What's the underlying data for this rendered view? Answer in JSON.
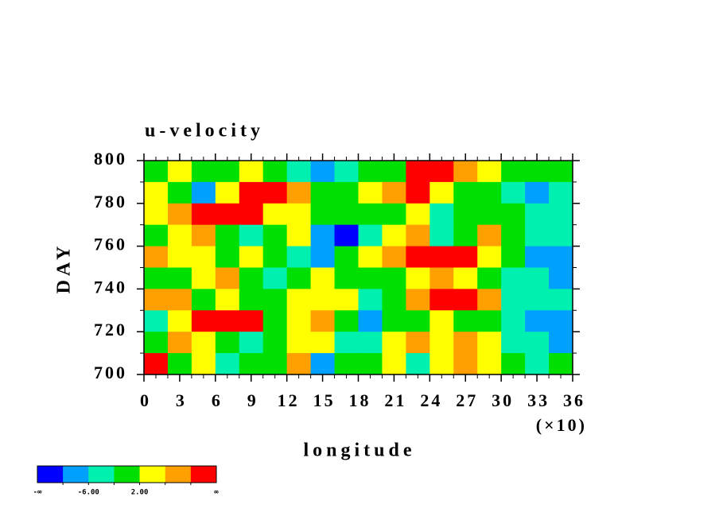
{
  "chart_data": {
    "type": "heatmap",
    "title": "u-velocity",
    "xlabel": "longitude",
    "ylabel": "DAY",
    "x_scale_note": "(×10)",
    "x": [
      1,
      3,
      5,
      7,
      9,
      11,
      13,
      15,
      17,
      19,
      21,
      23,
      25,
      27,
      29,
      31,
      33,
      35
    ],
    "y": [
      795,
      785,
      775,
      765,
      755,
      745,
      735,
      725,
      715,
      705
    ],
    "z": [
      [
        0,
        2,
        -2,
        0,
        4,
        -2,
        -4,
        -8,
        -4,
        -2,
        0,
        12,
        12,
        8,
        4,
        -2,
        -2,
        0
      ],
      [
        2,
        -2,
        -8,
        4,
        10,
        12,
        6,
        0,
        -2,
        4,
        6,
        10,
        4,
        0,
        -2,
        -4,
        -8,
        -4
      ],
      [
        4,
        8,
        12,
        12,
        10,
        4,
        2,
        -2,
        0,
        -2,
        0,
        2,
        -6,
        0,
        -2,
        -2,
        -4,
        -4
      ],
      [
        0,
        4,
        6,
        -2,
        -6,
        0,
        2,
        -8,
        -12,
        -4,
        2,
        6,
        -4,
        0,
        6,
        -2,
        -4,
        -6
      ],
      [
        6,
        4,
        2,
        0,
        4,
        -2,
        -4,
        -8,
        -2,
        2,
        6,
        10,
        12,
        12,
        4,
        -2,
        -10,
        -8
      ],
      [
        -2,
        0,
        4,
        6,
        -2,
        -6,
        0,
        2,
        0,
        -2,
        0,
        4,
        6,
        2,
        -2,
        -4,
        -6,
        -8
      ],
      [
        8,
        6,
        -2,
        2,
        0,
        -2,
        4,
        2,
        2,
        -4,
        0,
        8,
        12,
        10,
        6,
        -4,
        -6,
        -4
      ],
      [
        -4,
        4,
        10,
        12,
        10,
        -2,
        2,
        6,
        0,
        -8,
        0,
        -2,
        4,
        -2,
        0,
        -6,
        -8,
        -10
      ],
      [
        0,
        6,
        2,
        0,
        -4,
        -2,
        4,
        2,
        -6,
        -4,
        2,
        6,
        4,
        8,
        4,
        -6,
        -4,
        -8
      ],
      [
        10,
        -2,
        2,
        -4,
        -2,
        0,
        6,
        -8,
        0,
        -2,
        2,
        -4,
        4,
        6,
        2,
        0,
        -4,
        -2
      ]
    ],
    "xlim": [
      0,
      36
    ],
    "xticks": [
      0,
      3,
      6,
      9,
      12,
      15,
      18,
      21,
      24,
      27,
      30,
      33,
      36
    ],
    "xminorticks": [
      1,
      2,
      4,
      5,
      7,
      8,
      10,
      11,
      13,
      14,
      16,
      17,
      19,
      20,
      22,
      23,
      25,
      26,
      28,
      29,
      31,
      32,
      34,
      35
    ],
    "ylim": [
      700,
      800
    ],
    "yticks": [
      700,
      720,
      740,
      760,
      780,
      800
    ],
    "yminorticks": [
      710,
      730,
      750,
      770,
      790
    ],
    "levels": [
      -10,
      -6,
      -2,
      2,
      6,
      10
    ],
    "colors": [
      "#0000ff",
      "#00a0ff",
      "#00f0b0",
      "#00e000",
      "#ffff00",
      "#ffa000",
      "#ff0000"
    ],
    "colorbar_ticks": [
      {
        "value": -6,
        "label": "-6.00"
      },
      {
        "value": 2,
        "label": "2.00"
      }
    ],
    "colorbar_end_labels": [
      "-∞",
      "∞"
    ]
  }
}
